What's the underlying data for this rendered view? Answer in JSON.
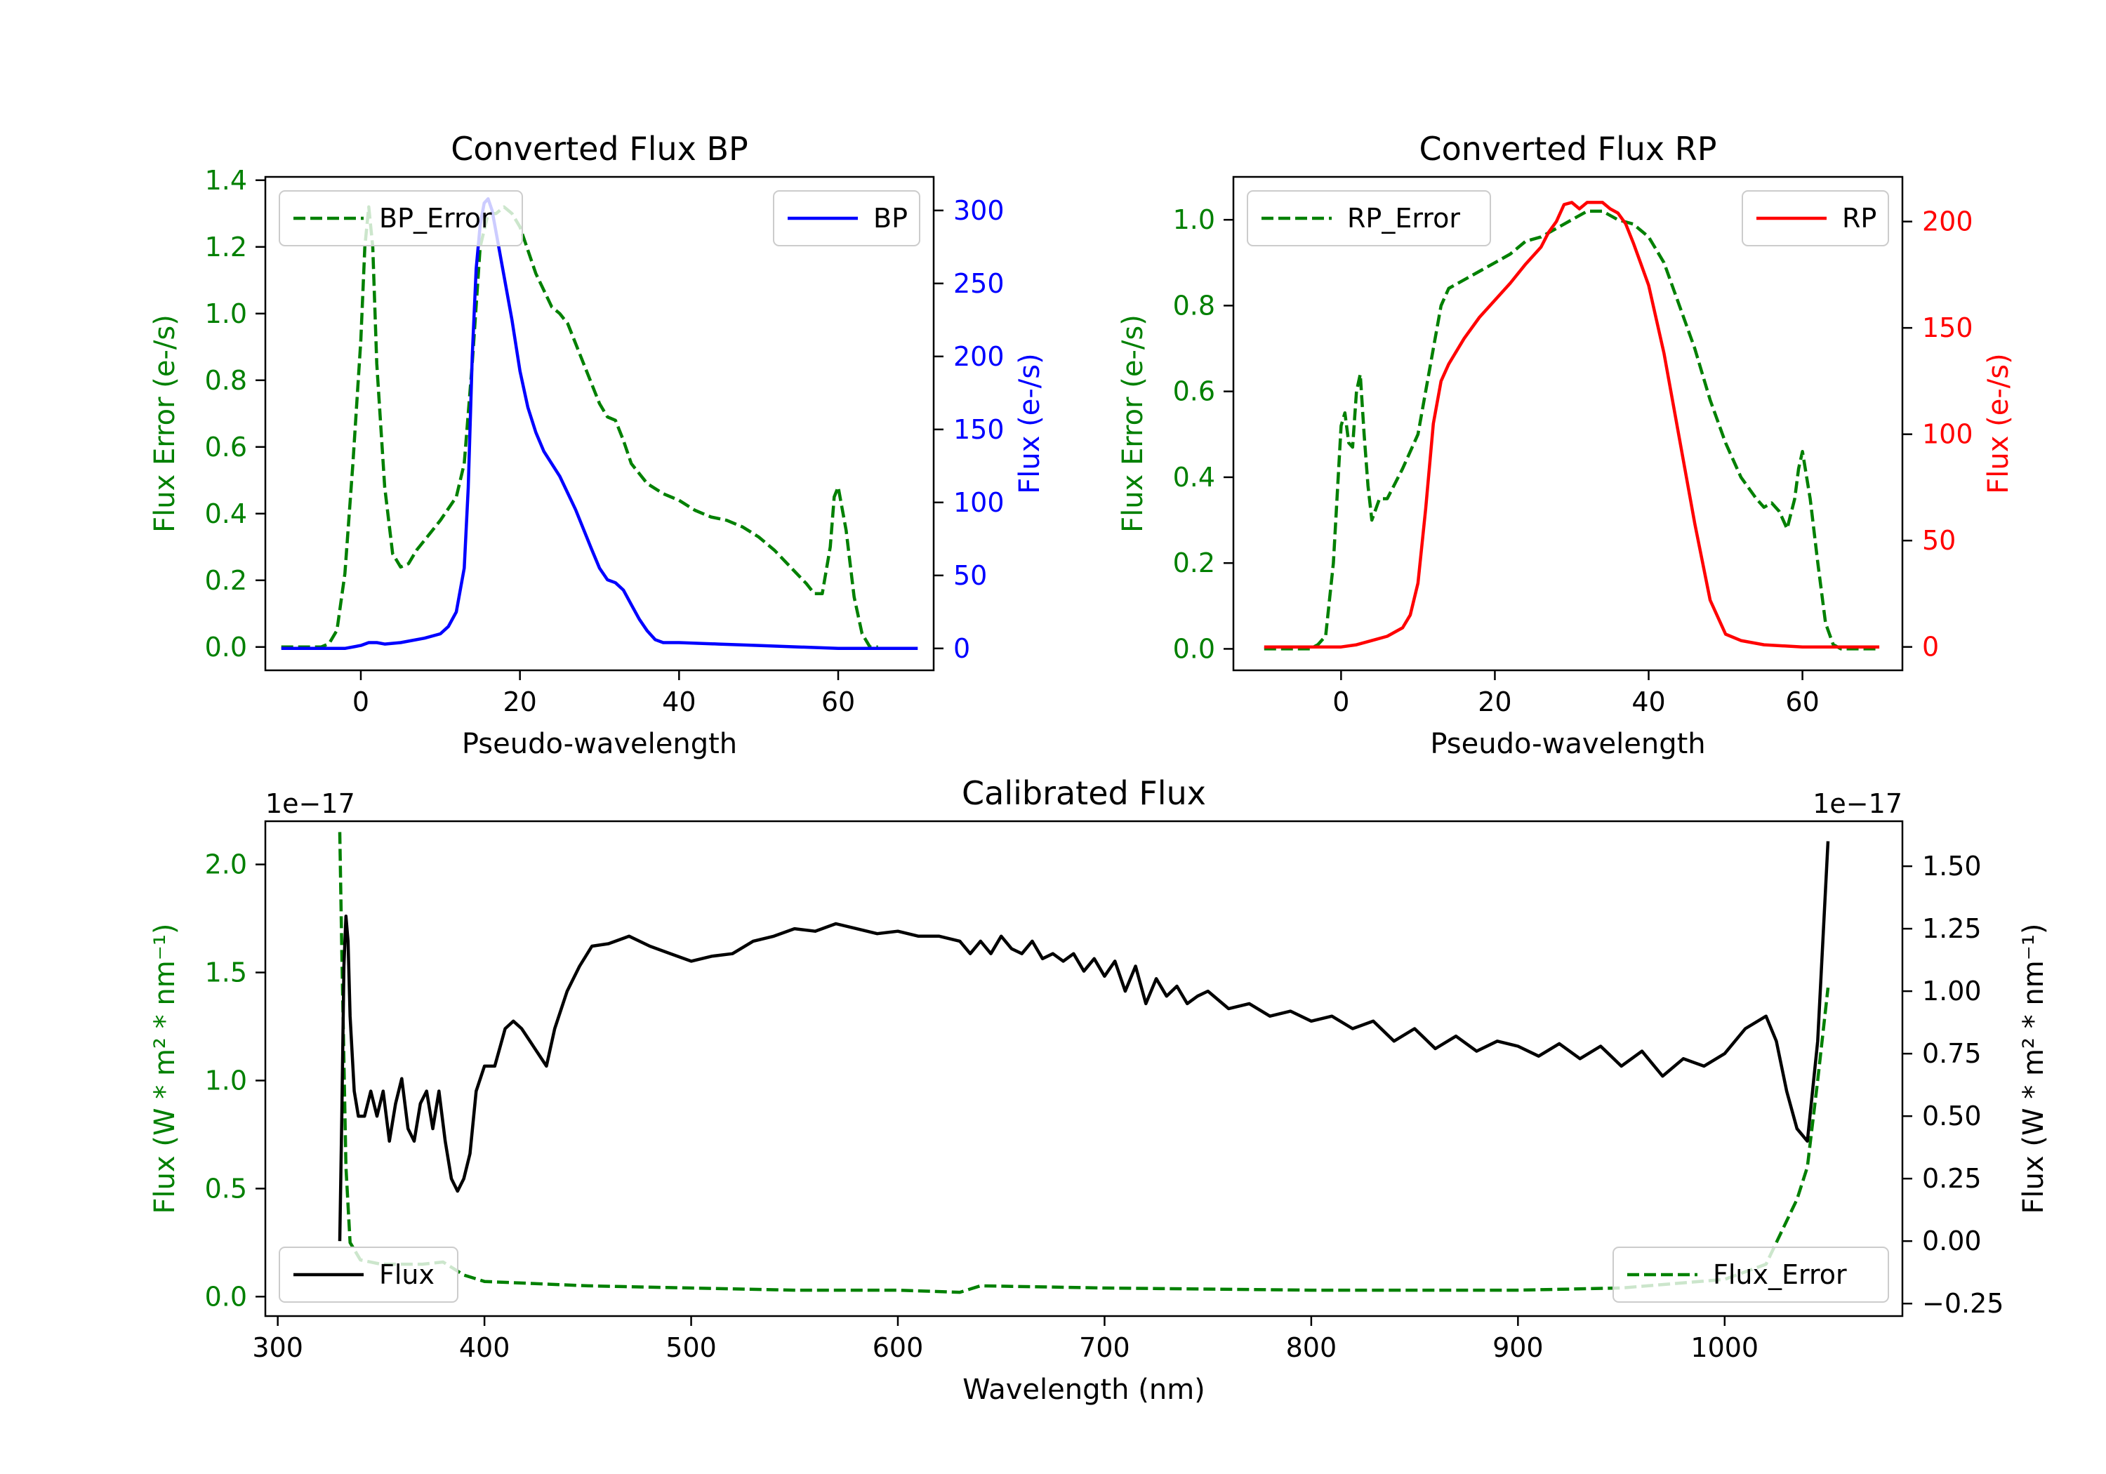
{
  "chart_data": [
    {
      "type": "line",
      "title": "Converted Flux BP",
      "xlabel": "Pseudo-wavelength",
      "ylabel_left": "Flux Error (e-/s)",
      "ylabel_right": "Flux (e-/s)",
      "xlim": [
        -12,
        72
      ],
      "ylim_left": [
        -0.07,
        1.41
      ],
      "ylim_right": [
        -15,
        323
      ],
      "xticks": [
        0,
        20,
        40,
        60
      ],
      "xtick_labels": [
        "0",
        "20",
        "40",
        "60"
      ],
      "yticks_left": [
        0,
        0.2,
        0.4,
        0.6,
        0.8,
        1.0,
        1.2,
        1.4
      ],
      "ytick_labels_left": [
        "0.0",
        "0.2",
        "0.4",
        "0.6",
        "0.8",
        "1.0",
        "1.2",
        "1.4"
      ],
      "yticks_right": [
        0,
        50,
        100,
        150,
        200,
        250,
        300
      ],
      "ytick_labels_right": [
        "0",
        "50",
        "100",
        "150",
        "200",
        "250",
        "300"
      ],
      "left_axis_color": "#008000",
      "right_axis_color": "#0000ff",
      "legend_left": {
        "label": "BP_Error",
        "placement": "upper-left"
      },
      "legend_right": {
        "label": "BP",
        "placement": "upper-right"
      },
      "series": [
        {
          "name": "BP_Error",
          "axis": "left",
          "color": "#008000",
          "style": "dashed",
          "x": [
            -10,
            -5,
            -4,
            -3,
            -2,
            -1,
            0,
            0.5,
            1,
            1.5,
            2,
            3,
            4,
            5,
            6,
            7,
            8,
            10,
            12,
            13,
            14,
            15,
            16,
            17,
            18,
            19,
            20,
            22,
            23,
            24,
            25,
            26,
            27,
            28,
            30,
            31,
            32,
            33,
            34,
            36,
            38,
            40,
            42,
            44,
            46,
            48,
            50,
            52,
            54,
            56,
            57,
            58,
            59,
            59.5,
            60,
            61,
            62,
            63,
            64,
            65
          ],
          "y": [
            0.0,
            0.0,
            0.01,
            0.05,
            0.22,
            0.55,
            0.92,
            1.2,
            1.32,
            1.2,
            0.85,
            0.48,
            0.28,
            0.24,
            0.25,
            0.29,
            0.32,
            0.38,
            0.45,
            0.55,
            0.85,
            1.2,
            1.3,
            1.3,
            1.32,
            1.3,
            1.26,
            1.12,
            1.07,
            1.02,
            1.0,
            0.97,
            0.91,
            0.85,
            0.73,
            0.69,
            0.68,
            0.62,
            0.55,
            0.49,
            0.46,
            0.44,
            0.41,
            0.39,
            0.38,
            0.36,
            0.33,
            0.29,
            0.24,
            0.19,
            0.16,
            0.16,
            0.3,
            0.45,
            0.48,
            0.35,
            0.15,
            0.04,
            0.0,
            0.0
          ]
        },
        {
          "name": "BP",
          "axis": "right",
          "color": "#0000ff",
          "style": "solid",
          "x": [
            -10,
            -5,
            -2,
            0,
            1,
            2,
            3,
            5,
            8,
            10,
            11,
            12,
            13,
            13.5,
            14,
            14.5,
            15,
            15.5,
            16,
            16.5,
            17,
            18,
            19,
            20,
            21,
            22,
            23,
            25,
            27,
            29,
            30,
            31,
            32,
            33,
            34,
            35,
            36,
            37,
            38,
            40,
            45,
            50,
            55,
            60,
            65,
            70
          ],
          "y": [
            0,
            0,
            0,
            2,
            4,
            4,
            3,
            4,
            7,
            10,
            15,
            25,
            55,
            110,
            200,
            260,
            290,
            305,
            308,
            300,
            285,
            255,
            225,
            190,
            165,
            148,
            135,
            118,
            95,
            68,
            55,
            47,
            45,
            40,
            30,
            20,
            12,
            6,
            4,
            4,
            3,
            2,
            1,
            0,
            0,
            0
          ]
        }
      ]
    },
    {
      "type": "line",
      "title": "Converted Flux RP",
      "xlabel": "Pseudo-wavelength",
      "ylabel_left": "Flux Error (e-/s)",
      "ylabel_right": "Flux (e-/s)",
      "xlim": [
        -14,
        73
      ],
      "ylim_left": [
        -0.05,
        1.1
      ],
      "ylim_right": [
        -11,
        221
      ],
      "xticks": [
        0,
        20,
        40,
        60
      ],
      "xtick_labels": [
        "0",
        "20",
        "40",
        "60"
      ],
      "yticks_left": [
        0,
        0.2,
        0.4,
        0.6,
        0.8,
        1.0
      ],
      "ytick_labels_left": [
        "0.0",
        "0.2",
        "0.4",
        "0.6",
        "0.8",
        "1.0"
      ],
      "yticks_right": [
        0,
        50,
        100,
        150,
        200
      ],
      "ytick_labels_right": [
        "0",
        "50",
        "100",
        "150",
        "200"
      ],
      "left_axis_color": "#008000",
      "right_axis_color": "#ff0000",
      "legend_left": {
        "label": "RP_Error",
        "placement": "upper-left"
      },
      "legend_right": {
        "label": "RP",
        "placement": "upper-right"
      },
      "series": [
        {
          "name": "RP_Error",
          "axis": "left",
          "color": "#008000",
          "style": "dashed",
          "x": [
            -10,
            -5,
            -4,
            -3,
            -2,
            -1,
            0,
            0.5,
            1,
            1.5,
            2,
            2.5,
            3,
            3.5,
            4,
            5,
            6,
            8,
            10,
            12,
            13,
            14,
            16,
            18,
            20,
            22,
            24,
            26,
            28,
            30,
            32,
            34,
            36,
            38,
            40,
            42,
            44,
            46,
            48,
            50,
            52,
            54,
            55,
            56,
            57,
            58,
            59,
            59.5,
            60,
            61,
            62,
            63,
            64,
            65,
            70
          ],
          "y": [
            0.0,
            0.0,
            0.0,
            0.01,
            0.03,
            0.2,
            0.52,
            0.55,
            0.48,
            0.47,
            0.6,
            0.64,
            0.5,
            0.38,
            0.3,
            0.35,
            0.35,
            0.42,
            0.5,
            0.7,
            0.8,
            0.84,
            0.86,
            0.88,
            0.9,
            0.92,
            0.95,
            0.96,
            0.98,
            1.0,
            1.02,
            1.02,
            1.0,
            0.99,
            0.96,
            0.9,
            0.8,
            0.7,
            0.58,
            0.48,
            0.4,
            0.35,
            0.33,
            0.34,
            0.32,
            0.28,
            0.35,
            0.42,
            0.46,
            0.35,
            0.2,
            0.06,
            0.01,
            0.0,
            0.0
          ]
        },
        {
          "name": "RP",
          "axis": "right",
          "color": "#ff0000",
          "style": "solid",
          "x": [
            -10,
            -5,
            0,
            2,
            4,
            6,
            8,
            9,
            10,
            11,
            12,
            13,
            14,
            16,
            18,
            20,
            22,
            24,
            26,
            27,
            28,
            29,
            30,
            31,
            32,
            33,
            34,
            35,
            36,
            37,
            38,
            39,
            40,
            42,
            44,
            46,
            48,
            50,
            52,
            55,
            60,
            65,
            70
          ],
          "y": [
            0,
            0,
            0,
            1,
            3,
            5,
            9,
            15,
            30,
            65,
            105,
            125,
            133,
            145,
            155,
            163,
            171,
            180,
            188,
            195,
            200,
            208,
            209,
            206,
            209,
            209,
            209,
            206,
            204,
            199,
            190,
            180,
            170,
            138,
            98,
            58,
            22,
            6,
            3,
            1,
            0,
            0,
            0
          ]
        }
      ]
    },
    {
      "type": "line",
      "title": "Calibrated Flux",
      "xlabel": "Wavelength (nm)",
      "ylabel_left": "Flux (W * m² * nm⁻¹)",
      "ylabel_right": "Flux (W * m² * nm⁻¹)",
      "scale_label_left": "1e−17",
      "scale_label_right": "1e−17",
      "xlim": [
        294,
        1086
      ],
      "ylim_left": [
        -0.09,
        2.2
      ],
      "ylim_right": [
        -0.3,
        1.68
      ],
      "xticks": [
        300,
        400,
        500,
        600,
        700,
        800,
        900,
        1000
      ],
      "xtick_labels": [
        "300",
        "400",
        "500",
        "600",
        "700",
        "800",
        "900",
        "1000"
      ],
      "yticks_left": [
        0,
        0.5,
        1.0,
        1.5,
        2.0
      ],
      "ytick_labels_left": [
        "0.0",
        "0.5",
        "1.0",
        "1.5",
        "2.0"
      ],
      "yticks_right": [
        -0.25,
        0,
        0.25,
        0.5,
        0.75,
        1.0,
        1.25,
        1.5
      ],
      "ytick_labels_right": [
        "−0.25",
        "0.00",
        "0.25",
        "0.50",
        "0.75",
        "1.00",
        "1.25",
        "1.50"
      ],
      "left_axis_color": "#008000",
      "right_axis_color": "#000000",
      "legend_left": {
        "label": "Flux",
        "placement": "lower-left"
      },
      "legend_right": {
        "label": "Flux_Error",
        "placement": "lower-right"
      },
      "series": [
        {
          "name": "Flux_Error",
          "axis": "left",
          "color": "#008000",
          "style": "dashed",
          "x": [
            330,
            331,
            333,
            335,
            340,
            350,
            370,
            380,
            390,
            400,
            450,
            500,
            550,
            600,
            630,
            640,
            700,
            800,
            900,
            950,
            1000,
            1020,
            1025,
            1030,
            1035,
            1040,
            1045,
            1050
          ],
          "y": [
            2.15,
            1.6,
            0.6,
            0.25,
            0.17,
            0.15,
            0.15,
            0.16,
            0.1,
            0.07,
            0.05,
            0.04,
            0.03,
            0.03,
            0.02,
            0.05,
            0.04,
            0.03,
            0.03,
            0.04,
            0.08,
            0.15,
            0.25,
            0.35,
            0.45,
            0.6,
            1.0,
            1.43
          ]
        },
        {
          "name": "Flux",
          "axis": "right",
          "color": "#000000",
          "style": "solid",
          "x": [
            330,
            331,
            332,
            333,
            334,
            335,
            337,
            339,
            342,
            345,
            348,
            351,
            354,
            357,
            360,
            363,
            366,
            369,
            372,
            375,
            378,
            381,
            384,
            387,
            390,
            393,
            396,
            400,
            405,
            410,
            414,
            418,
            422,
            426,
            430,
            434,
            440,
            446,
            452,
            460,
            470,
            480,
            490,
            500,
            510,
            520,
            530,
            540,
            550,
            560,
            570,
            580,
            590,
            600,
            610,
            620,
            630,
            635,
            640,
            645,
            650,
            655,
            660,
            665,
            670,
            675,
            680,
            685,
            690,
            695,
            700,
            705,
            710,
            715,
            720,
            725,
            730,
            735,
            740,
            745,
            750,
            760,
            770,
            780,
            790,
            800,
            810,
            820,
            830,
            840,
            850,
            860,
            870,
            880,
            890,
            900,
            910,
            920,
            930,
            940,
            950,
            960,
            970,
            980,
            990,
            1000,
            1010,
            1020,
            1025,
            1030,
            1035,
            1040,
            1045,
            1050
          ],
          "y": [
            0.0,
            0.5,
            1.1,
            1.3,
            1.2,
            0.9,
            0.6,
            0.5,
            0.5,
            0.6,
            0.5,
            0.6,
            0.4,
            0.55,
            0.65,
            0.45,
            0.4,
            0.55,
            0.6,
            0.45,
            0.6,
            0.4,
            0.25,
            0.2,
            0.25,
            0.35,
            0.6,
            0.7,
            0.7,
            0.85,
            0.88,
            0.85,
            0.8,
            0.75,
            0.7,
            0.85,
            1.0,
            1.1,
            1.18,
            1.19,
            1.22,
            1.18,
            1.15,
            1.12,
            1.14,
            1.15,
            1.2,
            1.22,
            1.25,
            1.24,
            1.27,
            1.25,
            1.23,
            1.24,
            1.22,
            1.22,
            1.2,
            1.15,
            1.2,
            1.15,
            1.22,
            1.17,
            1.15,
            1.2,
            1.13,
            1.15,
            1.12,
            1.15,
            1.08,
            1.13,
            1.06,
            1.12,
            1.0,
            1.1,
            0.95,
            1.05,
            0.98,
            1.02,
            0.95,
            0.98,
            1.0,
            0.93,
            0.95,
            0.9,
            0.92,
            0.88,
            0.9,
            0.85,
            0.88,
            0.8,
            0.85,
            0.77,
            0.82,
            0.76,
            0.8,
            0.78,
            0.74,
            0.79,
            0.73,
            0.78,
            0.7,
            0.76,
            0.66,
            0.73,
            0.7,
            0.75,
            0.85,
            0.9,
            0.8,
            0.6,
            0.45,
            0.4,
            0.8,
            1.6
          ]
        }
      ]
    }
  ]
}
